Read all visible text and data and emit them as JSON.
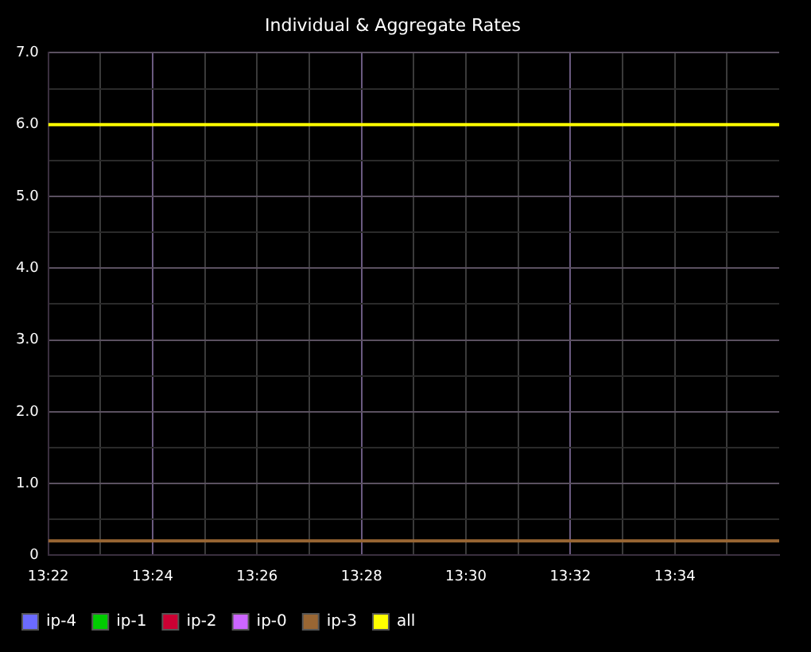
{
  "chart_data": {
    "type": "line",
    "title": "Individual & Aggregate Rates",
    "x": [
      13.366667,
      13.6
    ],
    "series": [
      {
        "name": "ip-4",
        "color": "#6b6bff",
        "values": [
          null,
          null
        ]
      },
      {
        "name": "ip-1",
        "color": "#00cc00",
        "values": [
          null,
          null
        ]
      },
      {
        "name": "ip-2",
        "color": "#cc0033",
        "values": [
          null,
          null
        ]
      },
      {
        "name": "ip-0",
        "color": "#cc66ff",
        "values": [
          null,
          null
        ]
      },
      {
        "name": "ip-3",
        "color": "#996633",
        "values": [
          0.2,
          0.2
        ]
      },
      {
        "name": "all",
        "color": "#ffff00",
        "values": [
          6.0,
          6.0
        ]
      }
    ],
    "xlim": [
      13.366667,
      13.6
    ],
    "xticks": [
      {
        "value": 13.366667,
        "label": "13:22"
      },
      {
        "value": 13.383333,
        "label": null
      },
      {
        "value": 13.4,
        "label": "13:24"
      },
      {
        "value": 13.416667,
        "label": null
      },
      {
        "value": 13.433333,
        "label": "13:26"
      },
      {
        "value": 13.45,
        "label": null
      },
      {
        "value": 13.466667,
        "label": "13:28"
      },
      {
        "value": 13.483333,
        "label": null
      },
      {
        "value": 13.5,
        "label": "13:30"
      },
      {
        "value": 13.516667,
        "label": null
      },
      {
        "value": 13.533333,
        "label": "13:32"
      },
      {
        "value": 13.55,
        "label": null
      },
      {
        "value": 13.566667,
        "label": "13:34"
      },
      {
        "value": 13.583333,
        "label": null
      }
    ],
    "ylim": [
      0,
      7
    ],
    "yticks": [
      {
        "value": 0,
        "label": "0"
      },
      {
        "value": 0.5,
        "label": null
      },
      {
        "value": 1,
        "label": "1.0"
      },
      {
        "value": 1.5,
        "label": null
      },
      {
        "value": 2,
        "label": "2.0"
      },
      {
        "value": 2.5,
        "label": null
      },
      {
        "value": 3,
        "label": "3.0"
      },
      {
        "value": 3.5,
        "label": null
      },
      {
        "value": 4,
        "label": "4.0"
      },
      {
        "value": 4.5,
        "label": null
      },
      {
        "value": 5,
        "label": "5.0"
      },
      {
        "value": 5.5,
        "label": null
      },
      {
        "value": 6,
        "label": "6.0"
      },
      {
        "value": 6.5,
        "label": null
      },
      {
        "value": 7,
        "label": "7.0"
      }
    ],
    "grid": true,
    "legend": "bottom",
    "marker": "none",
    "line_style": "solid"
  }
}
